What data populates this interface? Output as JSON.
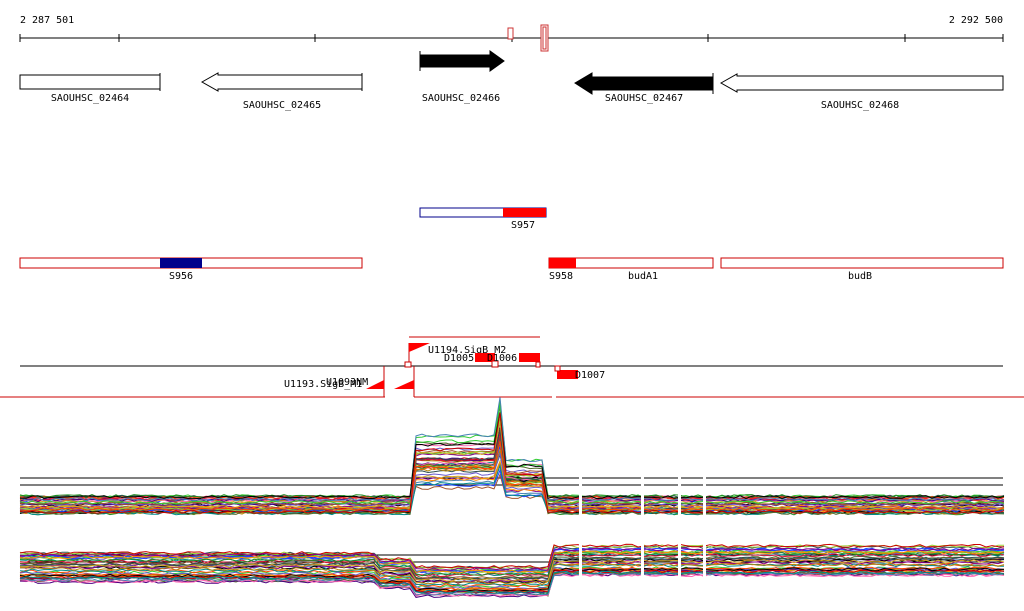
{
  "coordinates": {
    "start_label": "2 287 501",
    "end_label": "2 292 500",
    "start": 2287501,
    "end": 2292500
  },
  "genes": [
    {
      "name": "SAOUHSC_02464",
      "start": 2287501,
      "end": 2288210,
      "strand": "+",
      "style": "outline"
    },
    {
      "name": "SAOUHSC_02465",
      "start": 2288411,
      "end": 2289225,
      "strand": "-",
      "style": "outline"
    },
    {
      "name": "SAOUHSC_02466",
      "start": 2289790,
      "end": 2290210,
      "strand": "+",
      "style": "filled"
    },
    {
      "name": "SAOUHSC_02467",
      "start": 2290290,
      "end": 2290995,
      "strand": "-",
      "style": "filled"
    },
    {
      "name": "SAOUHSC_02468",
      "start": 2291030,
      "end": 2292500,
      "strand": "-",
      "style": "outline"
    }
  ],
  "upper_marks": [
    {
      "pos": 2289960,
      "kind": "small"
    },
    {
      "pos": 2290131,
      "kind": "tall"
    }
  ],
  "transcripts": [
    {
      "label": "S957",
      "start": 2289790,
      "end": 2290220,
      "fill_start": 2290000,
      "fill_end": 2290220,
      "fill_color": "#ff0000",
      "row": 0
    },
    {
      "label": "S956",
      "start": 2287501,
      "end": 2289225,
      "fill_start": 2288210,
      "fill_end": 2288420,
      "fill_color": "#00008b",
      "row": 1
    },
    {
      "label": "S958",
      "start": 2290225,
      "end": 2290995,
      "fill_start": 2290225,
      "fill_end": 2290360,
      "fill_color": "#ff0000",
      "row": 1,
      "extra_label": "budA1"
    },
    {
      "label": "budB",
      "start": 2291030,
      "end": 2292500,
      "row": 1
    }
  ],
  "features": [
    {
      "label": "U1194.SigB_M2",
      "pos": 2289750,
      "strand": "+"
    },
    {
      "label": "U1193.SigB_M1",
      "pos": 2289650,
      "strand": "-"
    },
    {
      "label": "D1005",
      "start": 2289790,
      "end": 2290010
    },
    {
      "label": "D1006",
      "start": 2290010,
      "end": 2290250
    },
    {
      "label": "D1007",
      "start": 2290250,
      "end": 2290345
    },
    {
      "label": "U1093NM",
      "start": 2289500,
      "end": 2289600
    }
  ]
}
